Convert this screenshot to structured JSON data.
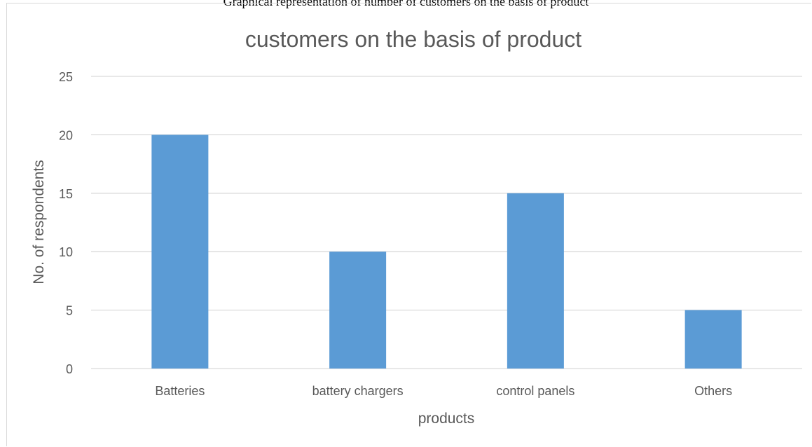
{
  "caption": "Graphical representation of number of customers on the basis of product",
  "colors": {
    "bar": "#5b9bd5",
    "grid": "#d9d9d9",
    "text": "#595959"
  },
  "chart_data": {
    "type": "bar",
    "title": "customers on the basis of product",
    "xlabel": "products",
    "ylabel": "No. of respondents",
    "categories": [
      "Batteries",
      "battery chargers",
      "control panels",
      "Others"
    ],
    "values": [
      20,
      10,
      15,
      5
    ],
    "ylim": [
      0,
      25
    ],
    "yticks": [
      "0",
      "5",
      "10",
      "15",
      "20",
      "25"
    ],
    "grid": true,
    "legend": "none"
  }
}
